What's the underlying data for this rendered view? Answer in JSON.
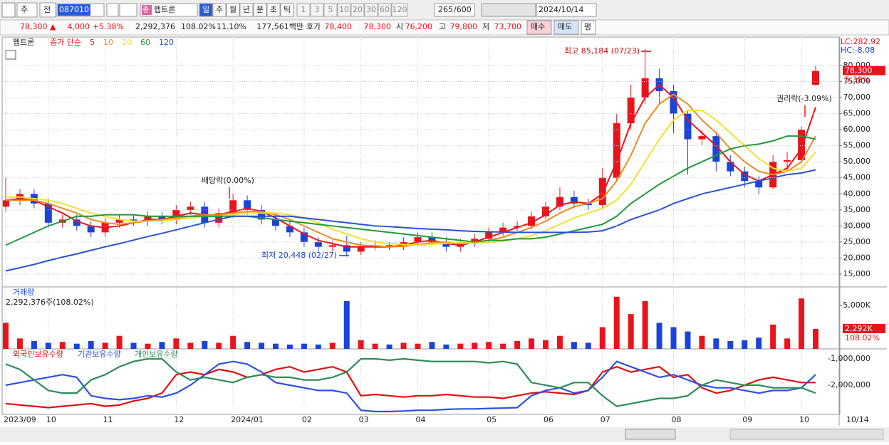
{
  "toolbar": {
    "market": "주",
    "prev": "전",
    "code": "087010",
    "name_badge": "종",
    "name": "펩트론",
    "periods": [
      "일",
      "주",
      "월",
      "년",
      "분",
      "초",
      "틱"
    ],
    "intervals": [
      "1",
      "3",
      "5",
      "10",
      "20",
      "30",
      "60",
      "120"
    ],
    "count": "265",
    "count_max": "/600",
    "date": "2024/10/14"
  },
  "info_bar": {
    "price": "78,300 ▲",
    "change": "4,000",
    "change_pct": "+5.38%",
    "volume": "2,292,376",
    "volume_ratio": "108.02%",
    "turnover": "11.10%",
    "amount": "177,561백만",
    "ask_label": "호가",
    "ask": "78,400",
    "bid": "78,300",
    "open_label": "시",
    "open": "76,200",
    "high_label": "고",
    "high": "79,800",
    "low_label": "저",
    "low": "73,700",
    "buy": "매수",
    "sell": "매도",
    "avg": "평"
  },
  "chart_data": [
    {
      "type": "candlestick",
      "name": "펩트론",
      "ma_label": "종가 단순",
      "categories": [
        "2023/09",
        null,
        null,
        "10",
        null,
        null,
        null,
        "11",
        null,
        null,
        null,
        null,
        "12",
        null,
        null,
        null,
        "2024/01",
        null,
        null,
        null,
        null,
        "02",
        null,
        null,
        null,
        "03",
        null,
        null,
        null,
        "04",
        null,
        null,
        null,
        null,
        "05",
        null,
        null,
        null,
        "06",
        null,
        null,
        null,
        "07",
        null,
        null,
        null,
        null,
        "08",
        null,
        null,
        null,
        null,
        "09",
        null,
        null,
        null,
        "10",
        null
      ],
      "open": [
        36000,
        38000,
        40000,
        37000,
        31000,
        32000,
        30000,
        28000,
        31000,
        32000,
        31500,
        33000,
        32000,
        35000,
        36000,
        31000,
        34000,
        38000,
        35000,
        32000,
        30000,
        28000,
        25000,
        23500,
        24000,
        22000,
        23500,
        24000,
        23500,
        25000,
        26500,
        25000,
        23500,
        24500,
        26000,
        28000,
        29500,
        30000,
        33000,
        36000,
        39000,
        37000,
        36500,
        45000,
        62000,
        70000,
        76000,
        72000,
        65000,
        57000,
        58000,
        50000,
        47000,
        44000,
        42000,
        50000,
        50500,
        74000
      ],
      "high": [
        45000,
        41500,
        41500,
        38500,
        33500,
        33500,
        31500,
        32500,
        33500,
        33500,
        34500,
        34500,
        36500,
        37500,
        37500,
        35500,
        40000,
        39500,
        36500,
        33500,
        31500,
        29500,
        26500,
        25500,
        27000,
        25000,
        25500,
        25000,
        26500,
        28000,
        28000,
        26500,
        26000,
        27500,
        29500,
        31000,
        31500,
        34500,
        37500,
        42000,
        41000,
        38500,
        48000,
        65000,
        74000,
        85184,
        79000,
        74000,
        66000,
        60000,
        59000,
        52000,
        48500,
        45500,
        52000,
        53000,
        61000,
        79800
      ],
      "low": [
        34500,
        36500,
        35500,
        29500,
        29500,
        28500,
        26500,
        26500,
        29500,
        30000,
        30000,
        30500,
        30500,
        33500,
        29500,
        29500,
        32500,
        33500,
        30500,
        28500,
        26500,
        23500,
        22000,
        22000,
        20448,
        21000,
        22500,
        22500,
        22500,
        24000,
        24000,
        22000,
        22000,
        23500,
        25000,
        27000,
        28500,
        29000,
        32000,
        35000,
        35500,
        35000,
        35500,
        44000,
        60000,
        68000,
        68000,
        59000,
        46000,
        55000,
        47000,
        45500,
        42000,
        40000,
        41500,
        47000,
        49500,
        73700
      ],
      "close": [
        38000,
        40000,
        37000,
        31000,
        32000,
        30000,
        28000,
        31000,
        32000,
        31500,
        33000,
        32000,
        35000,
        36000,
        31000,
        34000,
        38000,
        35000,
        32000,
        30000,
        28000,
        25000,
        23500,
        24000,
        22000,
        23500,
        24000,
        23500,
        25000,
        26500,
        25000,
        23500,
        24500,
        26000,
        28000,
        29500,
        30000,
        33000,
        36000,
        39000,
        37000,
        36500,
        45000,
        62000,
        70000,
        76000,
        72000,
        65000,
        57000,
        58000,
        50000,
        47000,
        44000,
        42000,
        50000,
        50500,
        60000,
        78300
      ],
      "up_color": "#e8141c",
      "down_color": "#1a44d8",
      "series": [
        {
          "name": "5",
          "color": "#e8141c",
          "values": [
            38000,
            38500,
            38000,
            36000,
            34000,
            31500,
            30000,
            29500,
            30000,
            31000,
            32000,
            32000,
            33000,
            34000,
            33500,
            33500,
            34500,
            35500,
            34500,
            32500,
            30000,
            27500,
            25500,
            24500,
            23500,
            23500,
            23500,
            23500,
            24000,
            25000,
            25500,
            24500,
            24000,
            25000,
            26500,
            28000,
            29500,
            31000,
            33500,
            36500,
            37500,
            37000,
            40000,
            50000,
            62000,
            70000,
            74000,
            70000,
            63000,
            59000,
            55000,
            50000,
            46000,
            44000,
            46000,
            48000,
            54000,
            67000
          ]
        },
        {
          "name": "10",
          "color": "#f08a1c",
          "values": [
            38000,
            38000,
            38000,
            37000,
            35500,
            34000,
            32000,
            31000,
            30500,
            31000,
            31500,
            32000,
            32500,
            33000,
            33500,
            33500,
            34000,
            34500,
            34500,
            33500,
            32000,
            30000,
            28000,
            26000,
            25000,
            24000,
            23800,
            23500,
            23700,
            24200,
            24800,
            25000,
            24500,
            24800,
            25500,
            26500,
            28000,
            29500,
            31500,
            34000,
            36000,
            37000,
            38500,
            44000,
            52000,
            62000,
            68000,
            71000,
            68000,
            63000,
            59000,
            54000,
            50000,
            47000,
            46000,
            47000,
            50000,
            58000
          ]
        },
        {
          "name": "20",
          "color": "#f2e22c",
          "values": [
            39000,
            39000,
            38500,
            38000,
            37000,
            35500,
            34000,
            33000,
            32000,
            31500,
            31500,
            31500,
            32000,
            32500,
            33000,
            33000,
            33500,
            34000,
            34000,
            34000,
            33500,
            32500,
            31000,
            29000,
            27500,
            26000,
            25000,
            24500,
            24200,
            24000,
            24300,
            24600,
            24800,
            24700,
            24800,
            25300,
            26000,
            27000,
            28500,
            30500,
            32500,
            34000,
            35500,
            38000,
            43000,
            50000,
            57000,
            63000,
            66000,
            66000,
            63000,
            59000,
            55000,
            51000,
            48000,
            47000,
            48000,
            53000
          ]
        },
        {
          "name": "60",
          "color": "#1f9a3a",
          "values": [
            24000,
            26000,
            28000,
            30000,
            31500,
            33000,
            33000,
            33500,
            33500,
            33500,
            33000,
            33000,
            33000,
            33000,
            33000,
            33000,
            33000,
            33000,
            32500,
            32000,
            31500,
            31000,
            30500,
            30000,
            29500,
            29000,
            28500,
            28000,
            27500,
            27000,
            26500,
            26000,
            25500,
            25000,
            25500,
            25500,
            26000,
            26000,
            26500,
            27500,
            28500,
            29500,
            30500,
            33000,
            37000,
            40000,
            43000,
            45500,
            48000,
            50000,
            52000,
            54000,
            55000,
            55500,
            56500,
            58000,
            58000,
            57000
          ]
        },
        {
          "name": "120",
          "color": "#2a52d6",
          "values": [
            16000,
            17000,
            18000,
            19200,
            20300,
            21300,
            22400,
            23500,
            24500,
            25600,
            26700,
            27700,
            28800,
            29900,
            31000,
            32000,
            33000,
            33000,
            33000,
            33000,
            33000,
            32500,
            32000,
            31500,
            31000,
            30500,
            30000,
            29800,
            29500,
            29200,
            29000,
            28800,
            28500,
            28300,
            28200,
            28100,
            28000,
            28000,
            28000,
            28000,
            28000,
            28100,
            28500,
            30000,
            32000,
            33500,
            35000,
            37000,
            38500,
            40000,
            41000,
            42000,
            43000,
            44000,
            45000,
            46000,
            46500,
            47500
          ]
        }
      ],
      "ylim": [
        11000,
        88200
      ],
      "yticks": [
        {
          "value": 15000,
          "label": "15,000"
        },
        {
          "value": 20000,
          "label": "20,000"
        },
        {
          "value": 25000,
          "label": "25,000"
        },
        {
          "value": 30000,
          "label": "30,000"
        },
        {
          "value": 35000,
          "label": "35,000"
        },
        {
          "value": 40000,
          "label": "40,000"
        },
        {
          "value": 45000,
          "label": "45,000"
        },
        {
          "value": 50000,
          "label": "50,000"
        },
        {
          "value": 55000,
          "label": "55,000"
        },
        {
          "value": 60000,
          "label": "60,000"
        },
        {
          "value": 65000,
          "label": "65,000"
        },
        {
          "value": 70000,
          "label": "70,000"
        },
        {
          "value": 75000,
          "label": "75,000"
        },
        {
          "value": 80000,
          "label": "80,000"
        }
      ],
      "grid": true,
      "lc": "LC:282.92",
      "hc": "HC:-8.08",
      "last_label": "78,300",
      "last_change": "5.38%",
      "annotations": [
        "최고 85,184 (07/23)",
        "최저 20,448 (02/27)",
        "배당락(0.00%)",
        "권리락(-3.09%)"
      ]
    },
    {
      "type": "bar",
      "title": "거래량",
      "summary": "2,292,376주(108.02%)",
      "values": [
        3000000,
        1200000,
        900000,
        700000,
        800000,
        600000,
        900000,
        700000,
        1500000,
        700000,
        600000,
        800000,
        1200000,
        700000,
        900000,
        700000,
        1500000,
        800000,
        700000,
        600000,
        500000,
        600000,
        500000,
        700000,
        5500000,
        1000000,
        600000,
        500000,
        700000,
        600000,
        800000,
        500000,
        600000,
        700000,
        800000,
        600000,
        900000,
        1200000,
        1000000,
        1500000,
        800000,
        700000,
        2500000,
        6000000,
        4000000,
        5500000,
        3000000,
        2500000,
        2000000,
        1500000,
        1200000,
        900000,
        1000000,
        1300000,
        2800000,
        1200000,
        5800000,
        2292376
      ],
      "ylim": [
        0,
        6800000
      ],
      "yticks": [
        {
          "value": 5000000,
          "label": "5,000K"
        }
      ],
      "last_label": "2,292K",
      "last_ratio": "108.02%"
    },
    {
      "type": "line",
      "series": [
        {
          "name": "외국인보유수량",
          "color": "#e01010",
          "values": [
            -2700000,
            -2750000,
            -2800000,
            -2850000,
            -2800000,
            -2750000,
            -2700000,
            -2800000,
            -2750000,
            -2600000,
            -2500000,
            -2300000,
            -1600000,
            -1500000,
            -1600000,
            -1400000,
            -1500000,
            -1700000,
            -1600000,
            -1400000,
            -1300000,
            -1500000,
            -1400000,
            -1300000,
            -1500000,
            -2400000,
            -2350000,
            -2400000,
            -2450000,
            -2400000,
            -2400000,
            -2350000,
            -2400000,
            -2450000,
            -2450000,
            -2500000,
            -2400000,
            -2300000,
            -2250000,
            -2300000,
            -2350000,
            -2200000,
            -1500000,
            -1300000,
            -1500000,
            -1400000,
            -1300000,
            -1700000,
            -1600000,
            -2100000,
            -2300000,
            -2200000,
            -2000000,
            -1800000,
            -1700000,
            -1800000,
            -1900000,
            -1900000
          ]
        },
        {
          "name": "기관보유수량",
          "color": "#2a52e0",
          "values": [
            -2000000,
            -1900000,
            -1800000,
            -1700000,
            -1600000,
            -1700000,
            -2400000,
            -2500000,
            -2550000,
            -2500000,
            -2400000,
            -2450000,
            -2300000,
            -2000000,
            -1600000,
            -1200000,
            -1100000,
            -1200000,
            -1500000,
            -1900000,
            -2000000,
            -2100000,
            -2200000,
            -2200000,
            -2300000,
            -2950000,
            -3000000,
            -3000000,
            -2980000,
            -2950000,
            -2950000,
            -2920000,
            -2900000,
            -2900000,
            -2880000,
            -2870000,
            -2850000,
            -2400000,
            -2200000,
            -2100000,
            -2300000,
            -2200000,
            -1700000,
            -1100000,
            -1300000,
            -1500000,
            -1700000,
            -1600000,
            -1800000,
            -2000000,
            -2100000,
            -2100000,
            -2200000,
            -2300000,
            -2200000,
            -2200000,
            -2100000,
            -1600000
          ]
        },
        {
          "name": "개인보유수량",
          "color": "#2e8b57",
          "values": [
            -1200000,
            -1400000,
            -1800000,
            -2200000,
            -2300000,
            -2300000,
            -1800000,
            -1600000,
            -1300000,
            -1100000,
            -1000000,
            -1000000,
            -1500000,
            -1800000,
            -1700000,
            -1800000,
            -1900000,
            -1700000,
            -1600000,
            -1700000,
            -1700000,
            -1800000,
            -1800000,
            -1700000,
            -1500000,
            -1000000,
            -1000000,
            -1050000,
            -1000000,
            -1050000,
            -1100000,
            -1100000,
            -1100000,
            -1100000,
            -1150000,
            -1100000,
            -1200000,
            -1900000,
            -2000000,
            -2100000,
            -1900000,
            -1900000,
            -2400000,
            -2800000,
            -2700000,
            -2600000,
            -2500000,
            -2500000,
            -2400000,
            -2000000,
            -1800000,
            -1900000,
            -2000000,
            -2000000,
            -2100000,
            -2100000,
            -2100000,
            -2300000
          ]
        }
      ],
      "ylim": [
        -3054000,
        -675000
      ],
      "yticks": [
        {
          "value": -1000000,
          "label": "-1,000,000"
        },
        {
          "value": -2000000,
          "label": "-2,000,000"
        }
      ]
    }
  ],
  "x_axis_end": "10/14"
}
